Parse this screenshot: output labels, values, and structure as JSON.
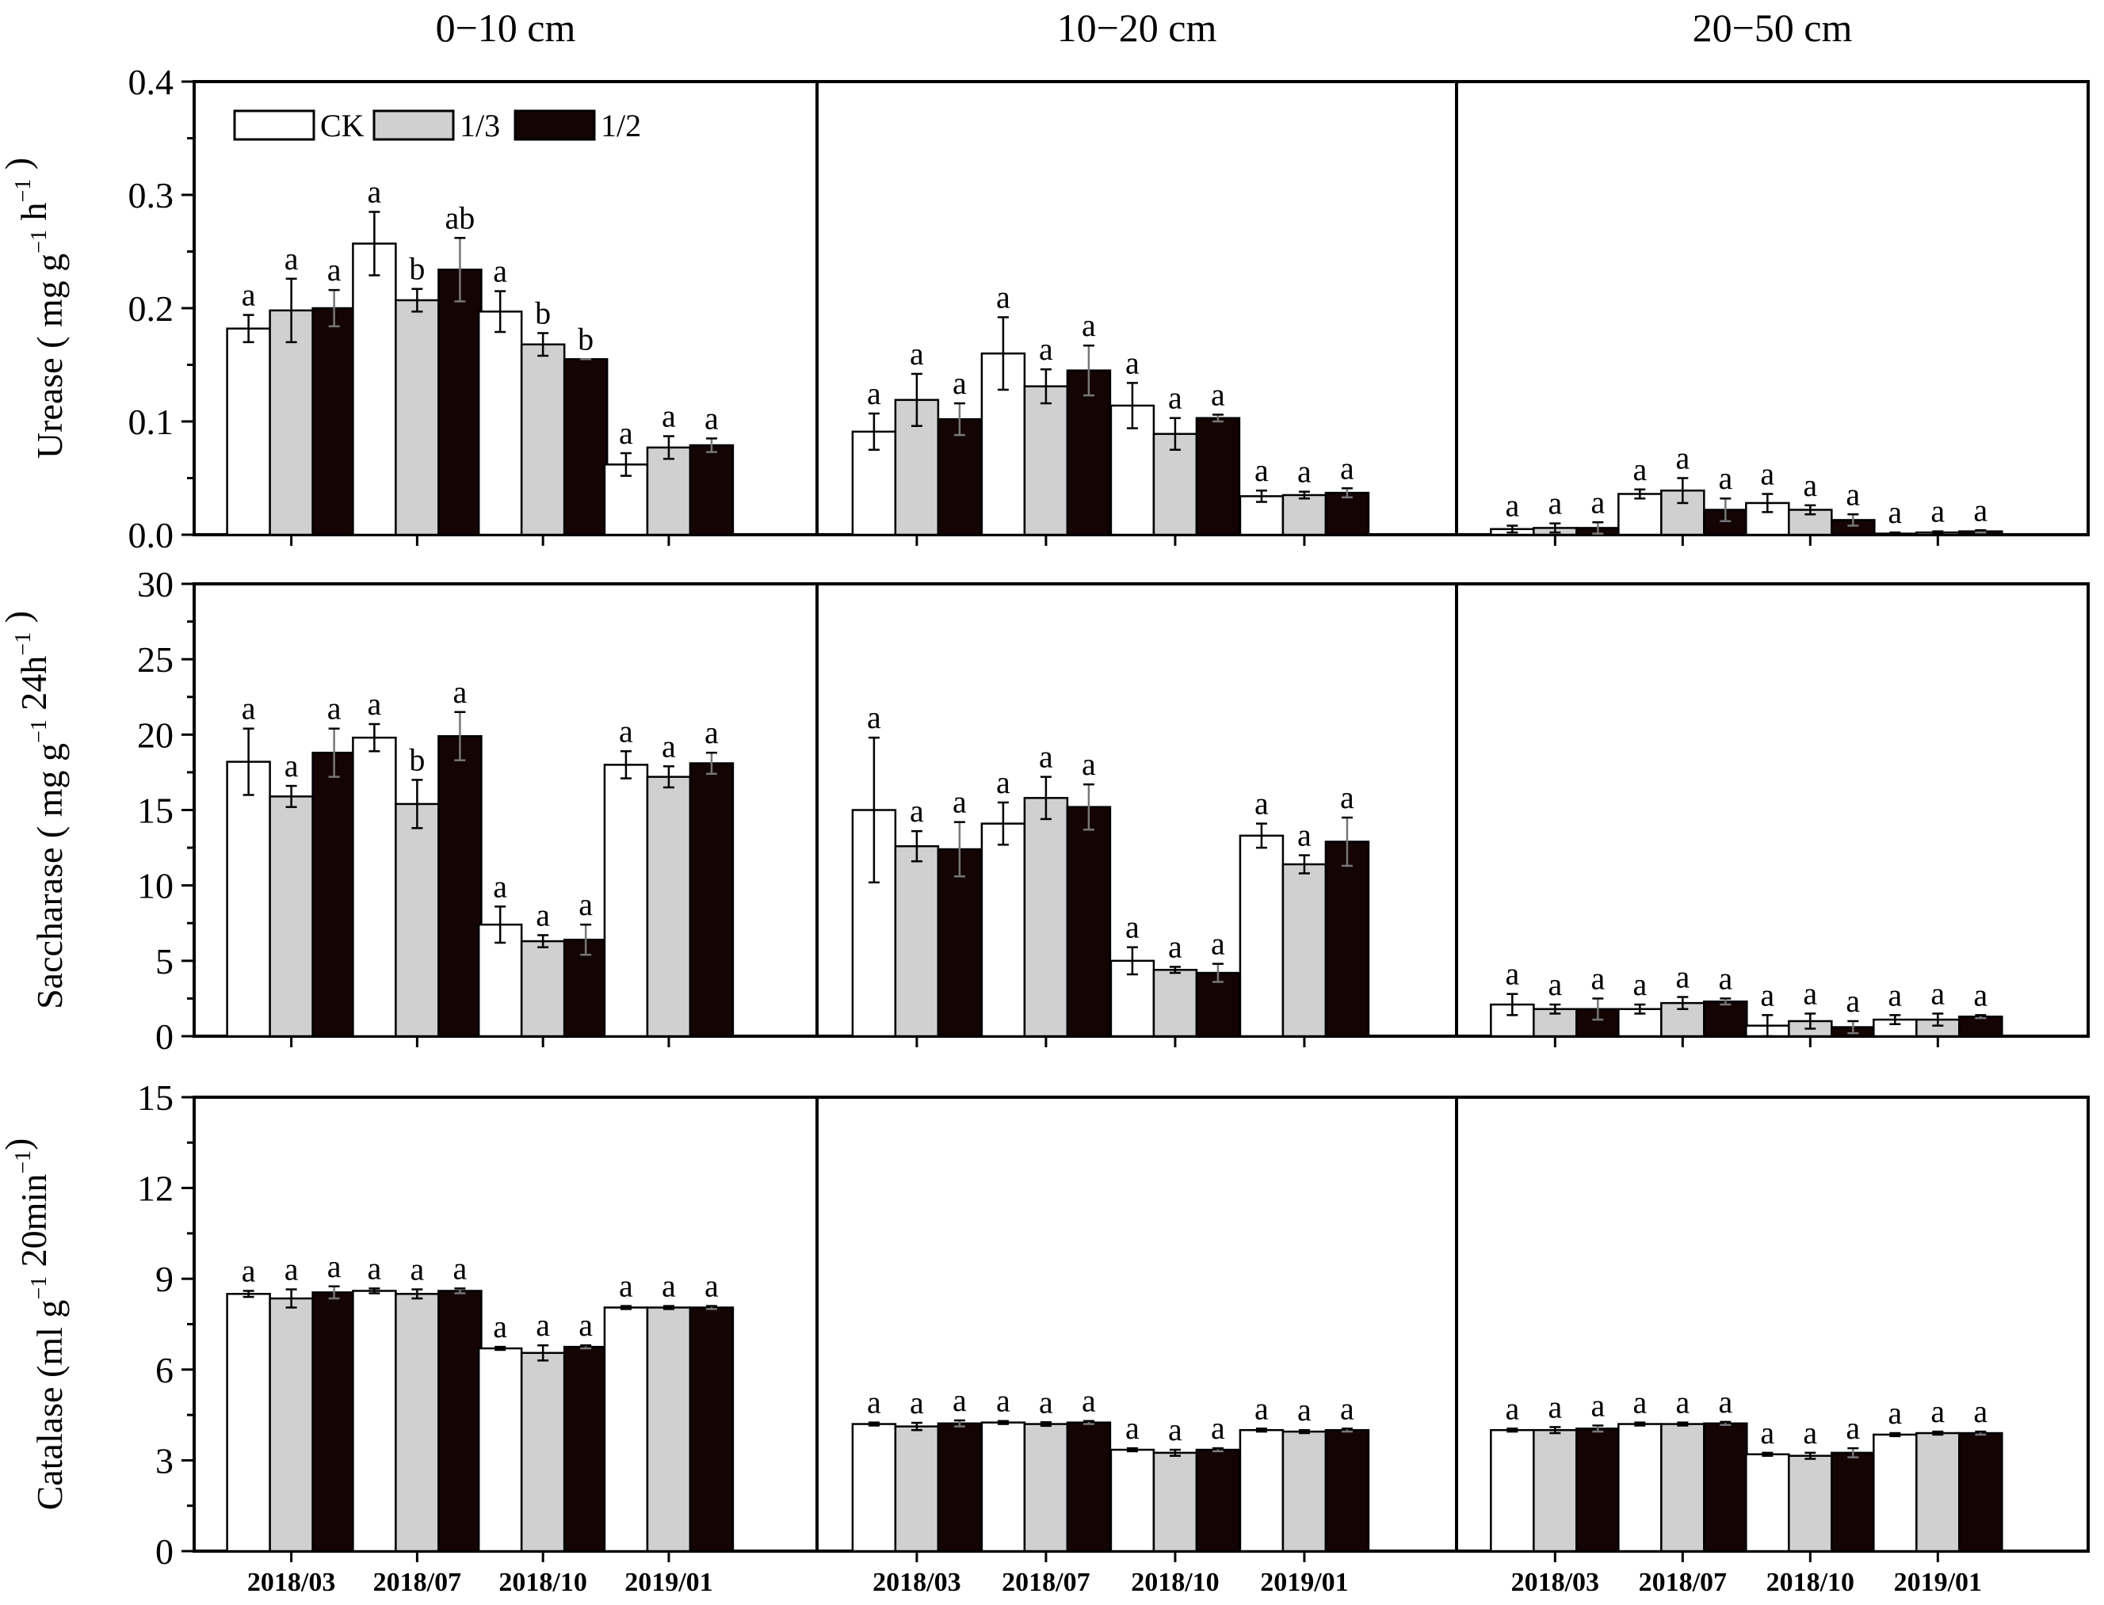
{
  "chart_data": {
    "type": "bar",
    "layout": "3 rows x 3 columns grouped bar panels with error bars",
    "depths": [
      "0−10 cm",
      "10−20 cm",
      "20−50 cm"
    ],
    "categories": [
      "2018/03",
      "2018/07",
      "2018/10",
      "2019/01"
    ],
    "legend": {
      "placement": "top-left of first row",
      "entries": [
        {
          "name": "CK",
          "color": "#ffffff"
        },
        {
          "name": "1/3",
          "color": "#d0d0d0"
        },
        {
          "name": "1/2",
          "color": "#140404"
        }
      ]
    },
    "rows": [
      {
        "id": "urease",
        "ylabel": {
          "main": "Urease ( mg g",
          "sup1": "−1",
          "mid": " h",
          "sup2": "−1",
          "end": " )"
        },
        "ylim": [
          0,
          0.4
        ],
        "ticks": [
          "0.0",
          "0.1",
          "0.2",
          "0.3",
          "0.4"
        ],
        "panels": [
          {
            "series": [
              {
                "name": "CK",
                "values": [
                  0.182,
                  0.257,
                  0.197,
                  0.062
                ],
                "errors": [
                  0.012,
                  0.028,
                  0.018,
                  0.01
                ],
                "letters": [
                  "a",
                  "a",
                  "a",
                  "a"
                ]
              },
              {
                "name": "1/3",
                "values": [
                  0.198,
                  0.207,
                  0.168,
                  0.077
                ],
                "errors": [
                  0.028,
                  0.01,
                  0.01,
                  0.01
                ],
                "letters": [
                  "a",
                  "b",
                  "b",
                  "a"
                ]
              },
              {
                "name": "1/2",
                "values": [
                  0.2,
                  0.234,
                  0.155,
                  0.079
                ],
                "errors": [
                  0.016,
                  0.028,
                  0.0,
                  0.006
                ],
                "letters": [
                  "a",
                  "ab",
                  "b",
                  "a"
                ]
              }
            ]
          },
          {
            "series": [
              {
                "name": "CK",
                "values": [
                  0.091,
                  0.16,
                  0.114,
                  0.034
                ],
                "errors": [
                  0.016,
                  0.032,
                  0.02,
                  0.005
                ],
                "letters": [
                  "a",
                  "a",
                  "a",
                  "a"
                ]
              },
              {
                "name": "1/3",
                "values": [
                  0.119,
                  0.131,
                  0.089,
                  0.035
                ],
                "errors": [
                  0.023,
                  0.015,
                  0.014,
                  0.003
                ],
                "letters": [
                  "a",
                  "a",
                  "a",
                  "a"
                ]
              },
              {
                "name": "1/2",
                "values": [
                  0.102,
                  0.145,
                  0.103,
                  0.037
                ],
                "errors": [
                  0.014,
                  0.022,
                  0.003,
                  0.004
                ],
                "letters": [
                  "a",
                  "a",
                  "a",
                  "a"
                ]
              }
            ]
          },
          {
            "series": [
              {
                "name": "CK",
                "values": [
                  0.005,
                  0.036,
                  0.028,
                  0.001
                ],
                "errors": [
                  0.003,
                  0.004,
                  0.008,
                  0.001
                ],
                "letters": [
                  "a",
                  "a",
                  "a",
                  "a"
                ]
              },
              {
                "name": "1/3",
                "values": [
                  0.006,
                  0.039,
                  0.022,
                  0.002
                ],
                "errors": [
                  0.004,
                  0.011,
                  0.004,
                  0.001
                ],
                "letters": [
                  "a",
                  "a",
                  "a",
                  "a"
                ]
              },
              {
                "name": "1/2",
                "values": [
                  0.006,
                  0.022,
                  0.013,
                  0.003
                ],
                "errors": [
                  0.005,
                  0.01,
                  0.005,
                  0.001
                ],
                "letters": [
                  "a",
                  "a",
                  "a",
                  "a"
                ]
              }
            ]
          }
        ]
      },
      {
        "id": "saccharase",
        "ylabel": {
          "main": "Saccharase ( mg g",
          "sup1": "−1",
          "mid": " 24h",
          "sup2": "−1",
          "end": " )"
        },
        "ylim": [
          0,
          30
        ],
        "ticks": [
          "0",
          "5",
          "10",
          "15",
          "20",
          "25",
          "30"
        ],
        "panels": [
          {
            "series": [
              {
                "name": "CK",
                "values": [
                  18.2,
                  19.8,
                  7.4,
                  18.0
                ],
                "errors": [
                  2.2,
                  0.9,
                  1.2,
                  0.9
                ],
                "letters": [
                  "a",
                  "a",
                  "a",
                  "a"
                ]
              },
              {
                "name": "1/3",
                "values": [
                  15.9,
                  15.4,
                  6.3,
                  17.2
                ],
                "errors": [
                  0.7,
                  1.6,
                  0.4,
                  0.7
                ],
                "letters": [
                  "a",
                  "b",
                  "a",
                  "a"
                ]
              },
              {
                "name": "1/2",
                "values": [
                  18.8,
                  19.9,
                  6.4,
                  18.1
                ],
                "errors": [
                  1.6,
                  1.6,
                  1.0,
                  0.7
                ],
                "letters": [
                  "a",
                  "a",
                  "a",
                  "a"
                ]
              }
            ]
          },
          {
            "series": [
              {
                "name": "CK",
                "values": [
                  15.0,
                  14.1,
                  5.0,
                  13.3
                ],
                "errors": [
                  4.8,
                  1.4,
                  0.9,
                  0.8
                ],
                "letters": [
                  "a",
                  "a",
                  "a",
                  "a"
                ]
              },
              {
                "name": "1/3",
                "values": [
                  12.6,
                  15.8,
                  4.4,
                  11.4
                ],
                "errors": [
                  1.0,
                  1.4,
                  0.2,
                  0.6
                ],
                "letters": [
                  "a",
                  "a",
                  "a",
                  "a"
                ]
              },
              {
                "name": "1/2",
                "values": [
                  12.4,
                  15.2,
                  4.2,
                  12.9
                ],
                "errors": [
                  1.8,
                  1.5,
                  0.6,
                  1.6
                ],
                "letters": [
                  "a",
                  "a",
                  "a",
                  "a"
                ]
              }
            ]
          },
          {
            "series": [
              {
                "name": "CK",
                "values": [
                  2.1,
                  1.8,
                  0.7,
                  1.1
                ],
                "errors": [
                  0.7,
                  0.3,
                  0.7,
                  0.3
                ],
                "letters": [
                  "a",
                  "a",
                  "a",
                  "a"
                ]
              },
              {
                "name": "1/3",
                "values": [
                  1.8,
                  2.2,
                  1.0,
                  1.1
                ],
                "errors": [
                  0.3,
                  0.4,
                  0.5,
                  0.4
                ],
                "letters": [
                  "a",
                  "a",
                  "a",
                  "a"
                ]
              },
              {
                "name": "1/2",
                "values": [
                  1.8,
                  2.3,
                  0.6,
                  1.3
                ],
                "errors": [
                  0.7,
                  0.2,
                  0.4,
                  0.1
                ],
                "letters": [
                  "a",
                  "a",
                  "a",
                  "a"
                ]
              }
            ]
          }
        ]
      },
      {
        "id": "catalase",
        "ylabel": {
          "main": "Catalase (ml g",
          "sup1": "−1",
          "mid": " 20min",
          "sup2": "−1",
          "end": ")"
        },
        "ylim": [
          0,
          15
        ],
        "ticks": [
          "0",
          "3",
          "6",
          "9",
          "12",
          "15"
        ],
        "panels": [
          {
            "series": [
              {
                "name": "CK",
                "values": [
                  8.5,
                  8.6,
                  6.7,
                  8.05
                ],
                "errors": [
                  0.1,
                  0.08,
                  0.05,
                  0.05
                ],
                "letters": [
                  "a",
                  "a",
                  "a",
                  "a"
                ]
              },
              {
                "name": "1/3",
                "values": [
                  8.35,
                  8.5,
                  6.55,
                  8.05
                ],
                "errors": [
                  0.3,
                  0.15,
                  0.25,
                  0.05
                ],
                "letters": [
                  "a",
                  "a",
                  "a",
                  "a"
                ]
              },
              {
                "name": "1/2",
                "values": [
                  8.55,
                  8.6,
                  6.75,
                  8.05
                ],
                "errors": [
                  0.2,
                  0.08,
                  0.05,
                  0.05
                ],
                "letters": [
                  "a",
                  "a",
                  "a",
                  "a"
                ]
              }
            ]
          },
          {
            "series": [
              {
                "name": "CK",
                "values": [
                  4.2,
                  4.25,
                  3.35,
                  4.0
                ],
                "errors": [
                  0.05,
                  0.05,
                  0.05,
                  0.05
                ],
                "letters": [
                  "a",
                  "a",
                  "a",
                  "a"
                ]
              },
              {
                "name": "1/3",
                "values": [
                  4.12,
                  4.2,
                  3.25,
                  3.95
                ],
                "errors": [
                  0.12,
                  0.06,
                  0.1,
                  0.05
                ],
                "letters": [
                  "a",
                  "a",
                  "a",
                  "a"
                ]
              },
              {
                "name": "1/2",
                "values": [
                  4.22,
                  4.25,
                  3.35,
                  4.0
                ],
                "errors": [
                  0.1,
                  0.05,
                  0.05,
                  0.05
                ],
                "letters": [
                  "a",
                  "a",
                  "a",
                  "a"
                ]
              }
            ]
          },
          {
            "series": [
              {
                "name": "CK",
                "values": [
                  4.0,
                  4.2,
                  3.2,
                  3.85
                ],
                "errors": [
                  0.05,
                  0.05,
                  0.05,
                  0.05
                ],
                "letters": [
                  "a",
                  "a",
                  "a",
                  "a"
                ]
              },
              {
                "name": "1/3",
                "values": [
                  4.0,
                  4.2,
                  3.15,
                  3.9
                ],
                "errors": [
                  0.1,
                  0.05,
                  0.1,
                  0.05
                ],
                "letters": [
                  "a",
                  "a",
                  "a",
                  "a"
                ]
              },
              {
                "name": "1/2",
                "values": [
                  4.05,
                  4.22,
                  3.25,
                  3.9
                ],
                "errors": [
                  0.1,
                  0.05,
                  0.15,
                  0.05
                ],
                "letters": [
                  "a",
                  "a",
                  "a",
                  "a"
                ]
              }
            ]
          }
        ]
      }
    ]
  }
}
